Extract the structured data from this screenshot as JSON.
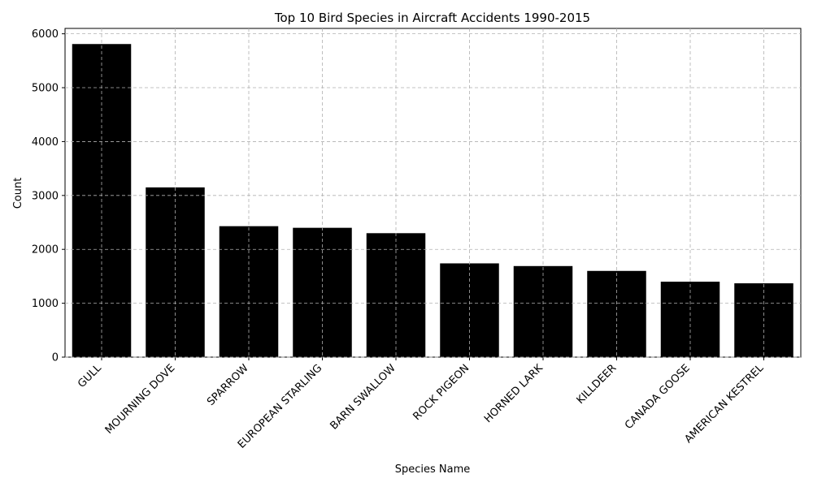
{
  "chart_data": {
    "type": "bar",
    "title": "Top 10 Bird Species in Aircraft Accidents 1990-2015",
    "xlabel": "Species Name",
    "ylabel": "Count",
    "categories": [
      "GULL",
      "MOURNING DOVE",
      "SPARROW",
      "EUROPEAN STARLING",
      "BARN SWALLOW",
      "ROCK PIGEON",
      "HORNED LARK",
      "KILLDEER",
      "CANADA GOOSE",
      "AMERICAN KESTREL"
    ],
    "values": [
      5810,
      3150,
      2430,
      2400,
      2300,
      1740,
      1690,
      1600,
      1400,
      1370
    ],
    "ylim": [
      0,
      6100
    ],
    "yticks": [
      0,
      1000,
      2000,
      3000,
      4000,
      5000,
      6000
    ],
    "grid": true,
    "bar_color": "#000000"
  }
}
